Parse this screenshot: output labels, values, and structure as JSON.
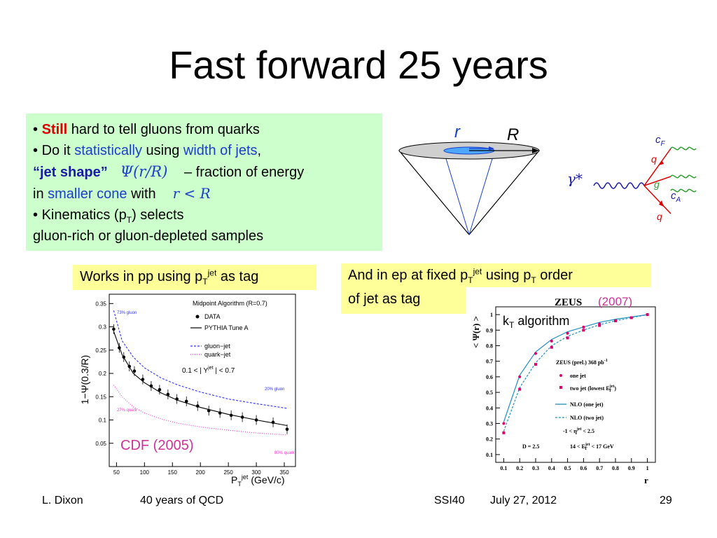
{
  "slide": {
    "title": "Fast forward 25 years",
    "page_number": "29"
  },
  "greenbox": {
    "line1_still": "Still",
    "line1_rest": " hard to tell gluons from quarks",
    "line2_a": "Do it ",
    "line2_statistically": "statistically",
    "line2_b": " using ",
    "line2_width": "width of jets",
    "line2_c": ",",
    "line3_jetshape": "“jet shape”",
    "line3_formula": "Ψ(r/R)",
    "line3_rest": " – fraction of energy",
    "line4_a": "in ",
    "line4_smaller": "smaller cone",
    "line4_b": " with",
    "line4_formula": "r < R",
    "line5_a": "Kinematics (p",
    "line5_sub": "T",
    "line5_b": ") selects",
    "line6": "gluon-rich or gluon-depleted samples"
  },
  "cone": {
    "r_label": "r",
    "R_label": "R"
  },
  "feynman": {
    "photon": "γ*",
    "cF": "c",
    "cF_sub": "F",
    "cA": "c",
    "cA_sub": "A",
    "q1": "q",
    "g": "g",
    "q2": "q"
  },
  "left_tag": {
    "text_a": "Works in pp using p",
    "sub": "T",
    "sup": "jet",
    "text_b": " as tag"
  },
  "right_tag": {
    "text_a": "And in ep at fixed p",
    "sub1": "T",
    "sup1": "jet",
    "text_b": " using p",
    "sub2": "T",
    "text_c": " order",
    "line2": "of jet as tag"
  },
  "cdf_plot": {
    "ylabel": "1−Ψ(0.3/R)",
    "xlabel": "P",
    "xlabel_sub": "T",
    "xlabel_sup": "jet",
    "xlabel_units": "(GeV/c)",
    "header": "Midpoint Algorithm (R=0.7)",
    "legend_data": "DATA",
    "legend_pythia": "PYTHIA Tune A",
    "legend_gluon": "gluon−jet",
    "legend_quark": "quark−jet",
    "cut": "0.1 < | Y",
    "cut_sup": "jet",
    "cut_end": " | < 0.7",
    "ann_73": "73% gluon",
    "ann_20": "20% gluon",
    "ann_27": "27% quark",
    "ann_80": "80% quark",
    "caption": "CDF (2005)",
    "yticks": [
      "0.05",
      "0.1",
      "0.15",
      "0.2",
      "0.25",
      "0.3",
      "0.35"
    ],
    "xticks": [
      "50",
      "100",
      "150",
      "200",
      "250",
      "300",
      "350"
    ]
  },
  "zeus_plot": {
    "title": "ZEUS",
    "year": "(2007)",
    "kt_label_a": "k",
    "kt_label_sub": "T",
    "kt_label_b": " algorithm",
    "ylabel": "< Ψ(r) >",
    "xlabel": "r",
    "lumi": "ZEUS (prel.) 368 pb",
    "lumi_sup": "-1",
    "legend_one": "one jet",
    "legend_two": "two jet (lowest E",
    "legend_two_sup": "jet",
    "legend_two_sub": "T",
    "legend_two_end": ")",
    "legend_nlo_one": "NLO (one jet)",
    "legend_nlo_two": "NLO (two jet)",
    "eta_cut": "-1 < η",
    "eta_cut_sup": "jet",
    "eta_cut_end": " < 2.5",
    "D": "D = 2.5",
    "et_cut": "14 < E",
    "et_cut_sup": "jet",
    "et_cut_sub": "T",
    "et_cut_end": " < 17 GeV",
    "yticks": [
      "0.1",
      "0.2",
      "0.3",
      "0.4",
      "0.5",
      "0.6",
      "0.7",
      "0.8",
      "0.9",
      "1"
    ],
    "xticks": [
      "0.1",
      "0.2",
      "0.3",
      "0.4",
      "0.5",
      "0.6",
      "0.7",
      "0.8",
      "0.9",
      "1"
    ]
  },
  "footer": {
    "author": "L. Dixon",
    "event": "40 years of QCD",
    "conf": "SSI40",
    "date": "July 27, 2012"
  },
  "chart_data": [
    {
      "type": "scatter",
      "title": "Midpoint Algorithm (R=0.7)",
      "xlabel": "PT jet (GeV/c)",
      "ylabel": "1−Ψ(0.3/R)",
      "xlim": [
        37,
        370
      ],
      "ylim": [
        0,
        0.37
      ],
      "series": [
        {
          "name": "DATA",
          "x": [
            45,
            55,
            63,
            73,
            82,
            97,
            112,
            127,
            142,
            158,
            175,
            195,
            215,
            235,
            255,
            275,
            300,
            330,
            355
          ],
          "y": [
            0.295,
            0.255,
            0.235,
            0.215,
            0.205,
            0.187,
            0.173,
            0.165,
            0.155,
            0.145,
            0.14,
            0.13,
            0.12,
            0.115,
            0.11,
            0.106,
            0.1,
            0.095,
            0.08
          ]
        },
        {
          "name": "PYTHIA Tune A",
          "x": [
            45,
            60,
            80,
            100,
            130,
            160,
            200,
            250,
            300,
            355
          ],
          "y": [
            0.29,
            0.24,
            0.2,
            0.18,
            0.158,
            0.142,
            0.127,
            0.112,
            0.1,
            0.088
          ]
        },
        {
          "name": "gluon−jet",
          "x": [
            45,
            60,
            80,
            100,
            130,
            160,
            200,
            250,
            300,
            355
          ],
          "y": [
            0.335,
            0.27,
            0.235,
            0.212,
            0.19,
            0.175,
            0.16,
            0.145,
            0.135,
            0.125
          ]
        },
        {
          "name": "quark−jet",
          "x": [
            45,
            60,
            80,
            100,
            130,
            160,
            200,
            250,
            300,
            355
          ],
          "y": [
            0.175,
            0.15,
            0.128,
            0.115,
            0.102,
            0.093,
            0.085,
            0.078,
            0.072,
            0.068
          ]
        }
      ]
    },
    {
      "type": "line",
      "title": "ZEUS",
      "xlabel": "r",
      "ylabel": "< Ψ(r) >",
      "xlim": [
        0.05,
        1.05
      ],
      "ylim": [
        0.05,
        1.05
      ],
      "series": [
        {
          "name": "one jet",
          "x": [
            0.1,
            0.2,
            0.3,
            0.4,
            0.5,
            0.6,
            0.7,
            0.8,
            0.9,
            1.0
          ],
          "y": [
            0.3,
            0.6,
            0.75,
            0.83,
            0.88,
            0.92,
            0.94,
            0.96,
            0.98,
            1.0
          ]
        },
        {
          "name": "two jet (lowest ET jet)",
          "x": [
            0.1,
            0.2,
            0.3,
            0.4,
            0.5,
            0.6,
            0.7,
            0.8,
            0.9,
            1.0
          ],
          "y": [
            0.24,
            0.52,
            0.68,
            0.79,
            0.85,
            0.9,
            0.93,
            0.96,
            0.98,
            1.0
          ]
        },
        {
          "name": "NLO (one jet)",
          "x": [
            0.1,
            0.2,
            0.3,
            0.4,
            0.5,
            0.6,
            0.7,
            0.8,
            0.9,
            1.0
          ],
          "y": [
            0.31,
            0.61,
            0.76,
            0.84,
            0.89,
            0.92,
            0.95,
            0.97,
            0.985,
            1.0
          ]
        },
        {
          "name": "NLO (two jet)",
          "x": [
            0.1,
            0.2,
            0.3,
            0.4,
            0.5,
            0.6,
            0.7,
            0.8,
            0.9,
            1.0
          ],
          "y": [
            0.25,
            0.53,
            0.69,
            0.8,
            0.86,
            0.9,
            0.935,
            0.96,
            0.98,
            1.0
          ]
        }
      ]
    }
  ]
}
